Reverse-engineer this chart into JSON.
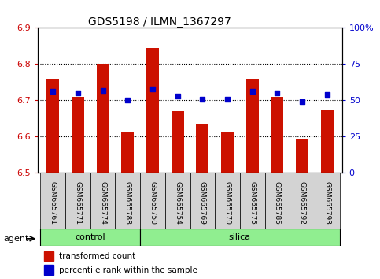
{
  "title": "GDS5198 / ILMN_1367297",
  "samples": [
    "GSM665761",
    "GSM665771",
    "GSM665774",
    "GSM665788",
    "GSM665750",
    "GSM665754",
    "GSM665769",
    "GSM665770",
    "GSM665775",
    "GSM665785",
    "GSM665792",
    "GSM665793"
  ],
  "transformed_count": [
    6.76,
    6.71,
    6.8,
    6.615,
    6.845,
    6.67,
    6.635,
    6.615,
    6.76,
    6.71,
    6.595,
    6.675
  ],
  "percentile_rank": [
    56,
    55,
    57,
    50,
    58,
    53,
    51,
    51,
    56,
    55,
    49,
    54
  ],
  "group": [
    "control",
    "control",
    "control",
    "control",
    "silica",
    "silica",
    "silica",
    "silica",
    "silica",
    "silica",
    "silica",
    "silica"
  ],
  "ylim_left": [
    6.5,
    6.9
  ],
  "ylim_right": [
    0,
    100
  ],
  "yticks_left": [
    6.5,
    6.6,
    6.7,
    6.8,
    6.9
  ],
  "yticks_right": [
    0,
    25,
    50,
    75,
    100
  ],
  "bar_color": "#CC1100",
  "dot_color": "#0000CC",
  "bar_width": 0.5,
  "control_color": "#90EE90",
  "silica_color": "#90EE90",
  "agent_label": "agent",
  "legend_bar_label": "transformed count",
  "legend_dot_label": "percentile rank within the sample",
  "grid_color": "#000000",
  "tick_label_color_left": "#CC0000",
  "tick_label_color_right": "#0000CC",
  "background_color": "#FFFFFF"
}
